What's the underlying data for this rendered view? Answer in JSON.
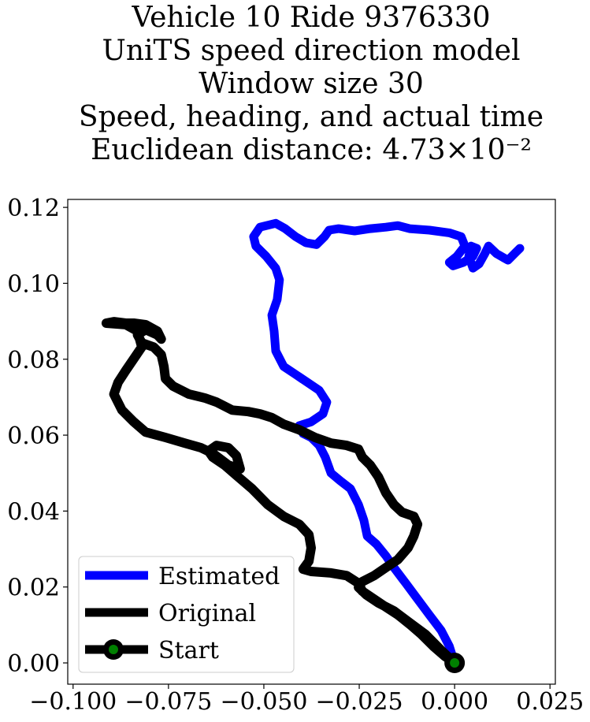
{
  "chart_data": {
    "type": "line",
    "title": [
      "Vehicle 10 Ride 9376330",
      "UniTS speed direction model",
      "Window size 30",
      "Speed, heading, and actual time",
      "Euclidean distance: 4.73×10⁻²"
    ],
    "xlim": [
      -0.1014,
      0.0264
    ],
    "ylim": [
      -0.0056,
      0.1221
    ],
    "xticks": [
      {
        "value": -0.1,
        "label": "−0.100"
      },
      {
        "value": -0.075,
        "label": "−0.075"
      },
      {
        "value": -0.05,
        "label": "−0.050"
      },
      {
        "value": -0.025,
        "label": "−0.025"
      },
      {
        "value": 0,
        "label": "0.000"
      },
      {
        "value": 0.025,
        "label": "0.025"
      }
    ],
    "yticks": [
      {
        "value": 0,
        "label": "0.00"
      },
      {
        "value": 0.02,
        "label": "0.02"
      },
      {
        "value": 0.04,
        "label": "0.04"
      },
      {
        "value": 0.06,
        "label": "0.06"
      },
      {
        "value": 0.08,
        "label": "0.08"
      },
      {
        "value": 0.1,
        "label": "0.10"
      },
      {
        "value": 0.12,
        "label": "0.12"
      }
    ],
    "legend": "lower left",
    "series": [
      {
        "name": "Estimated",
        "color": "#0000ff",
        "x": [
          0,
          -0.0014,
          -0.0035,
          -0.0066,
          -0.0097,
          -0.0128,
          -0.0159,
          -0.018,
          -0.0205,
          -0.0229,
          -0.0238,
          -0.0252,
          -0.0273,
          -0.03,
          -0.0324,
          -0.0339,
          -0.0355,
          -0.0376,
          -0.0397,
          -0.0407,
          -0.0376,
          -0.0345,
          -0.0335,
          -0.0355,
          -0.0386,
          -0.0417,
          -0.0448,
          -0.0469,
          -0.0473,
          -0.0479,
          -0.0465,
          -0.0459,
          -0.0469,
          -0.0494,
          -0.0521,
          -0.0527,
          -0.051,
          -0.0469,
          -0.0444,
          -0.0417,
          -0.039,
          -0.0362,
          -0.0341,
          -0.0329,
          -0.0304,
          -0.0262,
          -0.0221,
          -0.018,
          -0.0149,
          -0.0118,
          -0.0066,
          -0.0014,
          0.0017,
          0.0027,
          0.0006,
          -0.0014,
          -0.0004,
          0.0023,
          0.0048,
          0.0058,
          0.0043,
          0.0037,
          0.0048,
          0.0064,
          0.0079,
          0.0089,
          0.011,
          0.014,
          0.0161,
          0.0171
        ],
        "values": [
          0,
          0.0044,
          0.0085,
          0.0126,
          0.0168,
          0.021,
          0.0251,
          0.0282,
          0.0313,
          0.0334,
          0.0376,
          0.0417,
          0.0459,
          0.048,
          0.05,
          0.0542,
          0.0573,
          0.0594,
          0.0604,
          0.0625,
          0.0635,
          0.0656,
          0.0687,
          0.0718,
          0.0739,
          0.076,
          0.0781,
          0.0822,
          0.0874,
          0.0916,
          0.0957,
          0.1009,
          0.104,
          0.1071,
          0.1098,
          0.1123,
          0.1148,
          0.1158,
          0.1144,
          0.1123,
          0.1107,
          0.1102,
          0.1123,
          0.114,
          0.1144,
          0.1138,
          0.1144,
          0.1148,
          0.1152,
          0.1144,
          0.114,
          0.1133,
          0.1123,
          0.1098,
          0.1071,
          0.1055,
          0.1046,
          0.1055,
          0.1071,
          0.1092,
          0.1098,
          0.1071,
          0.104,
          0.1051,
          0.1078,
          0.1098,
          0.1078,
          0.1061,
          0.1082,
          0.1092
        ]
      },
      {
        "name": "Original",
        "color": "#000000",
        "x": [
          0,
          -0.0035,
          -0.0076,
          -0.0118,
          -0.0159,
          -0.02,
          -0.0231,
          -0.0252,
          -0.0242,
          -0.0211,
          -0.018,
          -0.0149,
          -0.0122,
          -0.0107,
          -0.0097,
          -0.0107,
          -0.0138,
          -0.0159,
          -0.018,
          -0.02,
          -0.0221,
          -0.0242,
          -0.0252,
          -0.0283,
          -0.0324,
          -0.0366,
          -0.0407,
          -0.0448,
          -0.0479,
          -0.051,
          -0.0541,
          -0.0583,
          -0.0624,
          -0.0655,
          -0.0696,
          -0.0738,
          -0.0758,
          -0.0762,
          -0.0769,
          -0.0789,
          -0.082,
          -0.0831,
          -0.081,
          -0.0779,
          -0.0769,
          -0.0779,
          -0.081,
          -0.0841,
          -0.0862,
          -0.0893,
          -0.0913,
          -0.0862,
          -0.0831,
          -0.082,
          -0.0841,
          -0.0862,
          -0.0882,
          -0.0893,
          -0.0872,
          -0.0841,
          -0.081,
          -0.0758,
          -0.0707,
          -0.0665,
          -0.0634,
          -0.0593,
          -0.0562,
          -0.0572,
          -0.0593,
          -0.0624,
          -0.0645,
          -0.0634,
          -0.0603,
          -0.0572,
          -0.0531,
          -0.049,
          -0.0448,
          -0.0407,
          -0.0382,
          -0.0376,
          -0.0382,
          -0.0397,
          -0.0376,
          -0.0324,
          -0.0283,
          -0.0252,
          -0.0242,
          -0.0211,
          -0.018,
          -0.0149,
          -0.0118,
          -0.0087,
          -0.0056,
          -0.0025,
          0
        ],
        "values": [
          0,
          0.0033,
          0.0075,
          0.0106,
          0.0137,
          0.0158,
          0.0179,
          0.0199,
          0.0214,
          0.023,
          0.0251,
          0.0272,
          0.0303,
          0.0334,
          0.0365,
          0.0386,
          0.0397,
          0.0417,
          0.0448,
          0.049,
          0.0521,
          0.0542,
          0.0563,
          0.0573,
          0.0579,
          0.0594,
          0.0614,
          0.0629,
          0.0646,
          0.0656,
          0.0662,
          0.0666,
          0.0687,
          0.0698,
          0.0708,
          0.0729,
          0.0749,
          0.0781,
          0.0812,
          0.0832,
          0.0843,
          0.0864,
          0.0878,
          0.0864,
          0.0853,
          0.0874,
          0.0891,
          0.0895,
          0.0895,
          0.0899,
          0.0895,
          0.0891,
          0.0874,
          0.0832,
          0.0801,
          0.077,
          0.0739,
          0.0708,
          0.0666,
          0.0635,
          0.0608,
          0.0594,
          0.0579,
          0.0567,
          0.0552,
          0.0521,
          0.0511,
          0.0546,
          0.0567,
          0.0573,
          0.0558,
          0.0542,
          0.0521,
          0.0494,
          0.0459,
          0.0417,
          0.0386,
          0.0365,
          0.0338,
          0.0303,
          0.0268,
          0.0247,
          0.0241,
          0.0237,
          0.023,
          0.021,
          0.0189,
          0.0168,
          0.0147,
          0.0127,
          0.0102,
          0.0075,
          0.0044,
          0.0017,
          0
        ]
      },
      {
        "name": "Start",
        "color": "#000000",
        "marker_color": "#008000",
        "x": [
          0
        ],
        "values": [
          0
        ]
      }
    ]
  }
}
